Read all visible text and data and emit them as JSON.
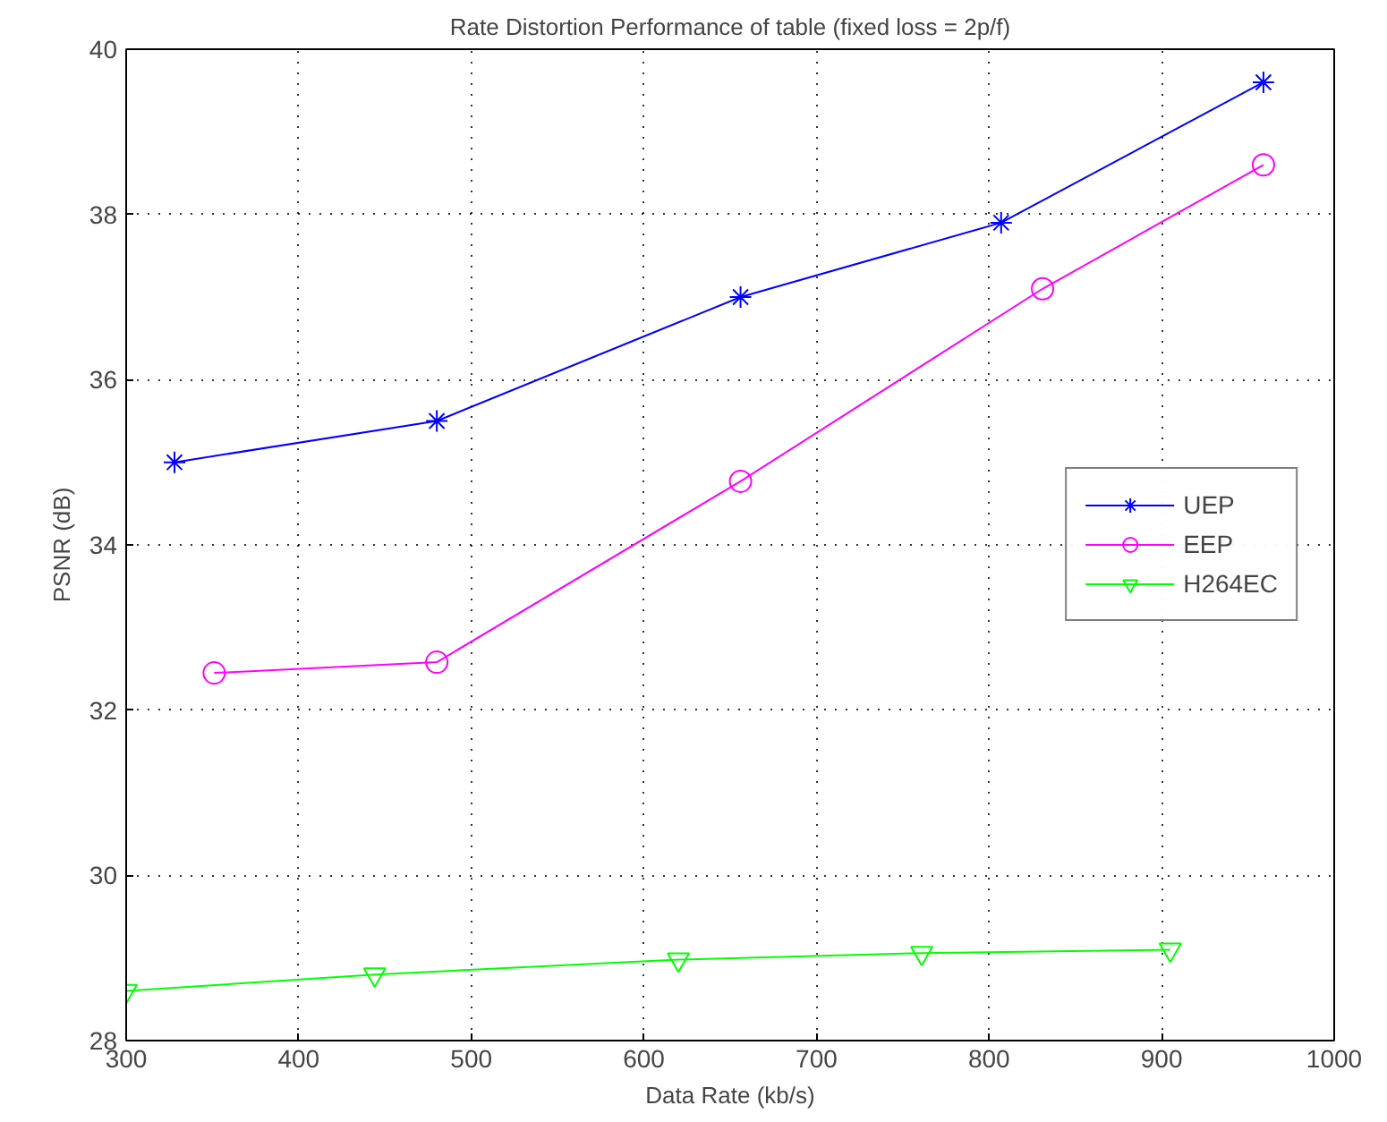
{
  "chart_data": {
    "type": "line",
    "title": "Rate Distortion Performance of table (fixed loss = 2p/f)",
    "xlabel": "Data Rate (kb/s)",
    "ylabel": "PSNR (dB)",
    "xlim": [
      300,
      1000
    ],
    "xticks": [
      300,
      400,
      500,
      600,
      700,
      800,
      900,
      1000
    ],
    "ylim": [
      28,
      40
    ],
    "yticks": [
      28,
      30,
      32,
      34,
      36,
      38,
      40
    ],
    "grid": true,
    "legend": "right",
    "line_style": "solid",
    "series": [
      {
        "name": "UEP",
        "color": "#0000ff",
        "marker": "cross",
        "x": [
          328,
          480,
          656,
          807,
          959
        ],
        "values": [
          35.0,
          35.5,
          37.0,
          37.9,
          39.6
        ]
      },
      {
        "name": "EEP",
        "color": "#ff00ff",
        "marker": "circle",
        "x": [
          351,
          480,
          656,
          831,
          959
        ],
        "values": [
          32.45,
          32.58,
          34.77,
          37.1,
          38.6
        ]
      },
      {
        "name": "H264EC",
        "color": "#00ff00",
        "marker": "triangle",
        "x": [
          300,
          444,
          620,
          761,
          905
        ],
        "values": [
          28.6,
          28.8,
          28.98,
          29.06,
          29.1
        ]
      }
    ]
  }
}
